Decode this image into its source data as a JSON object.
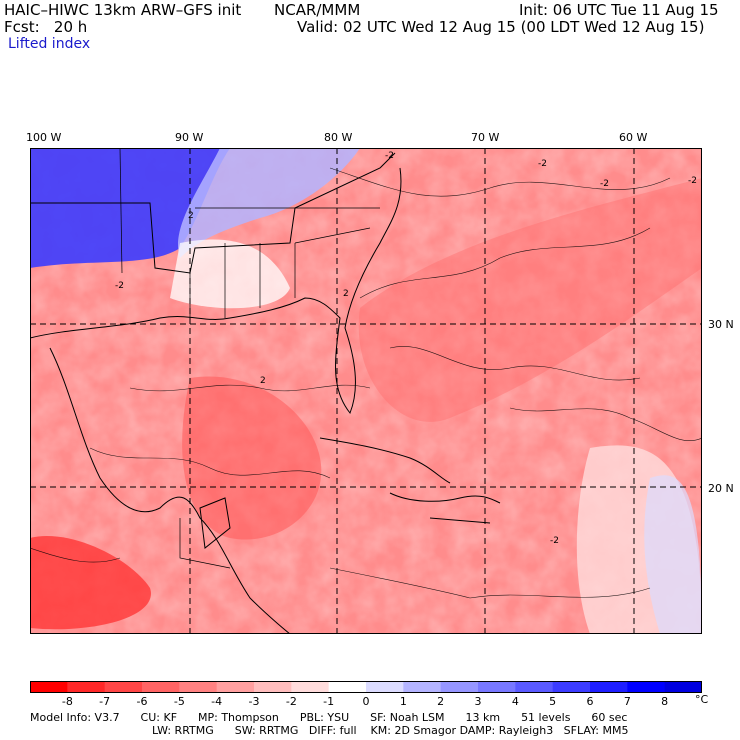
{
  "header": {
    "model": "HAIC–HIWC 13km ARW–GFS init",
    "org": "NCAR/MMM",
    "init": "Init: 06 UTC Tue 11 Aug 15",
    "fcst": "Fcst:   20 h",
    "valid": "Valid: 02 UTC Wed 12 Aug 15 (00 LDT Wed 12 Aug 15)",
    "field": "Lifted index"
  },
  "map": {
    "lon_labels": [
      "100 W",
      "90 W",
      "80 W",
      "70 W",
      "60 W"
    ],
    "lat_labels": [
      "30 N",
      "20 N"
    ],
    "contour_labels": [
      "-2",
      "-2",
      "-2",
      "-2",
      "2",
      "2",
      "-2",
      "2",
      "-2"
    ]
  },
  "colorbar": {
    "tick_labels": [
      "-8",
      "-7",
      "-6",
      "-5",
      "-4",
      "-3",
      "-2",
      "-1",
      "0",
      "1",
      "2",
      "3",
      "4",
      "5",
      "6",
      "7",
      "8"
    ],
    "unit": "°C",
    "colors": [
      "#ff0000",
      "#ff2828",
      "#ff4646",
      "#ff6464",
      "#ff8282",
      "#ffa0a0",
      "#ffbebe",
      "#ffdcdc",
      "#ffffff",
      "#dcdcff",
      "#b4b4ff",
      "#9696ff",
      "#7878ff",
      "#5a5aff",
      "#3c3cff",
      "#1e1eff",
      "#0000ff",
      "#0000e0"
    ]
  },
  "footer": {
    "line1": "Model Info: V3.7      CU: KF      MP: Thompson      PBL: YSU      SF: Noah LSM      13 km      51 levels      60 sec",
    "line2": "LW: RRTMG      SW: RRTMG   DIFF: full    KM: 2D Smagor DAMP: Rayleigh3   SFLAY: MM5"
  }
}
